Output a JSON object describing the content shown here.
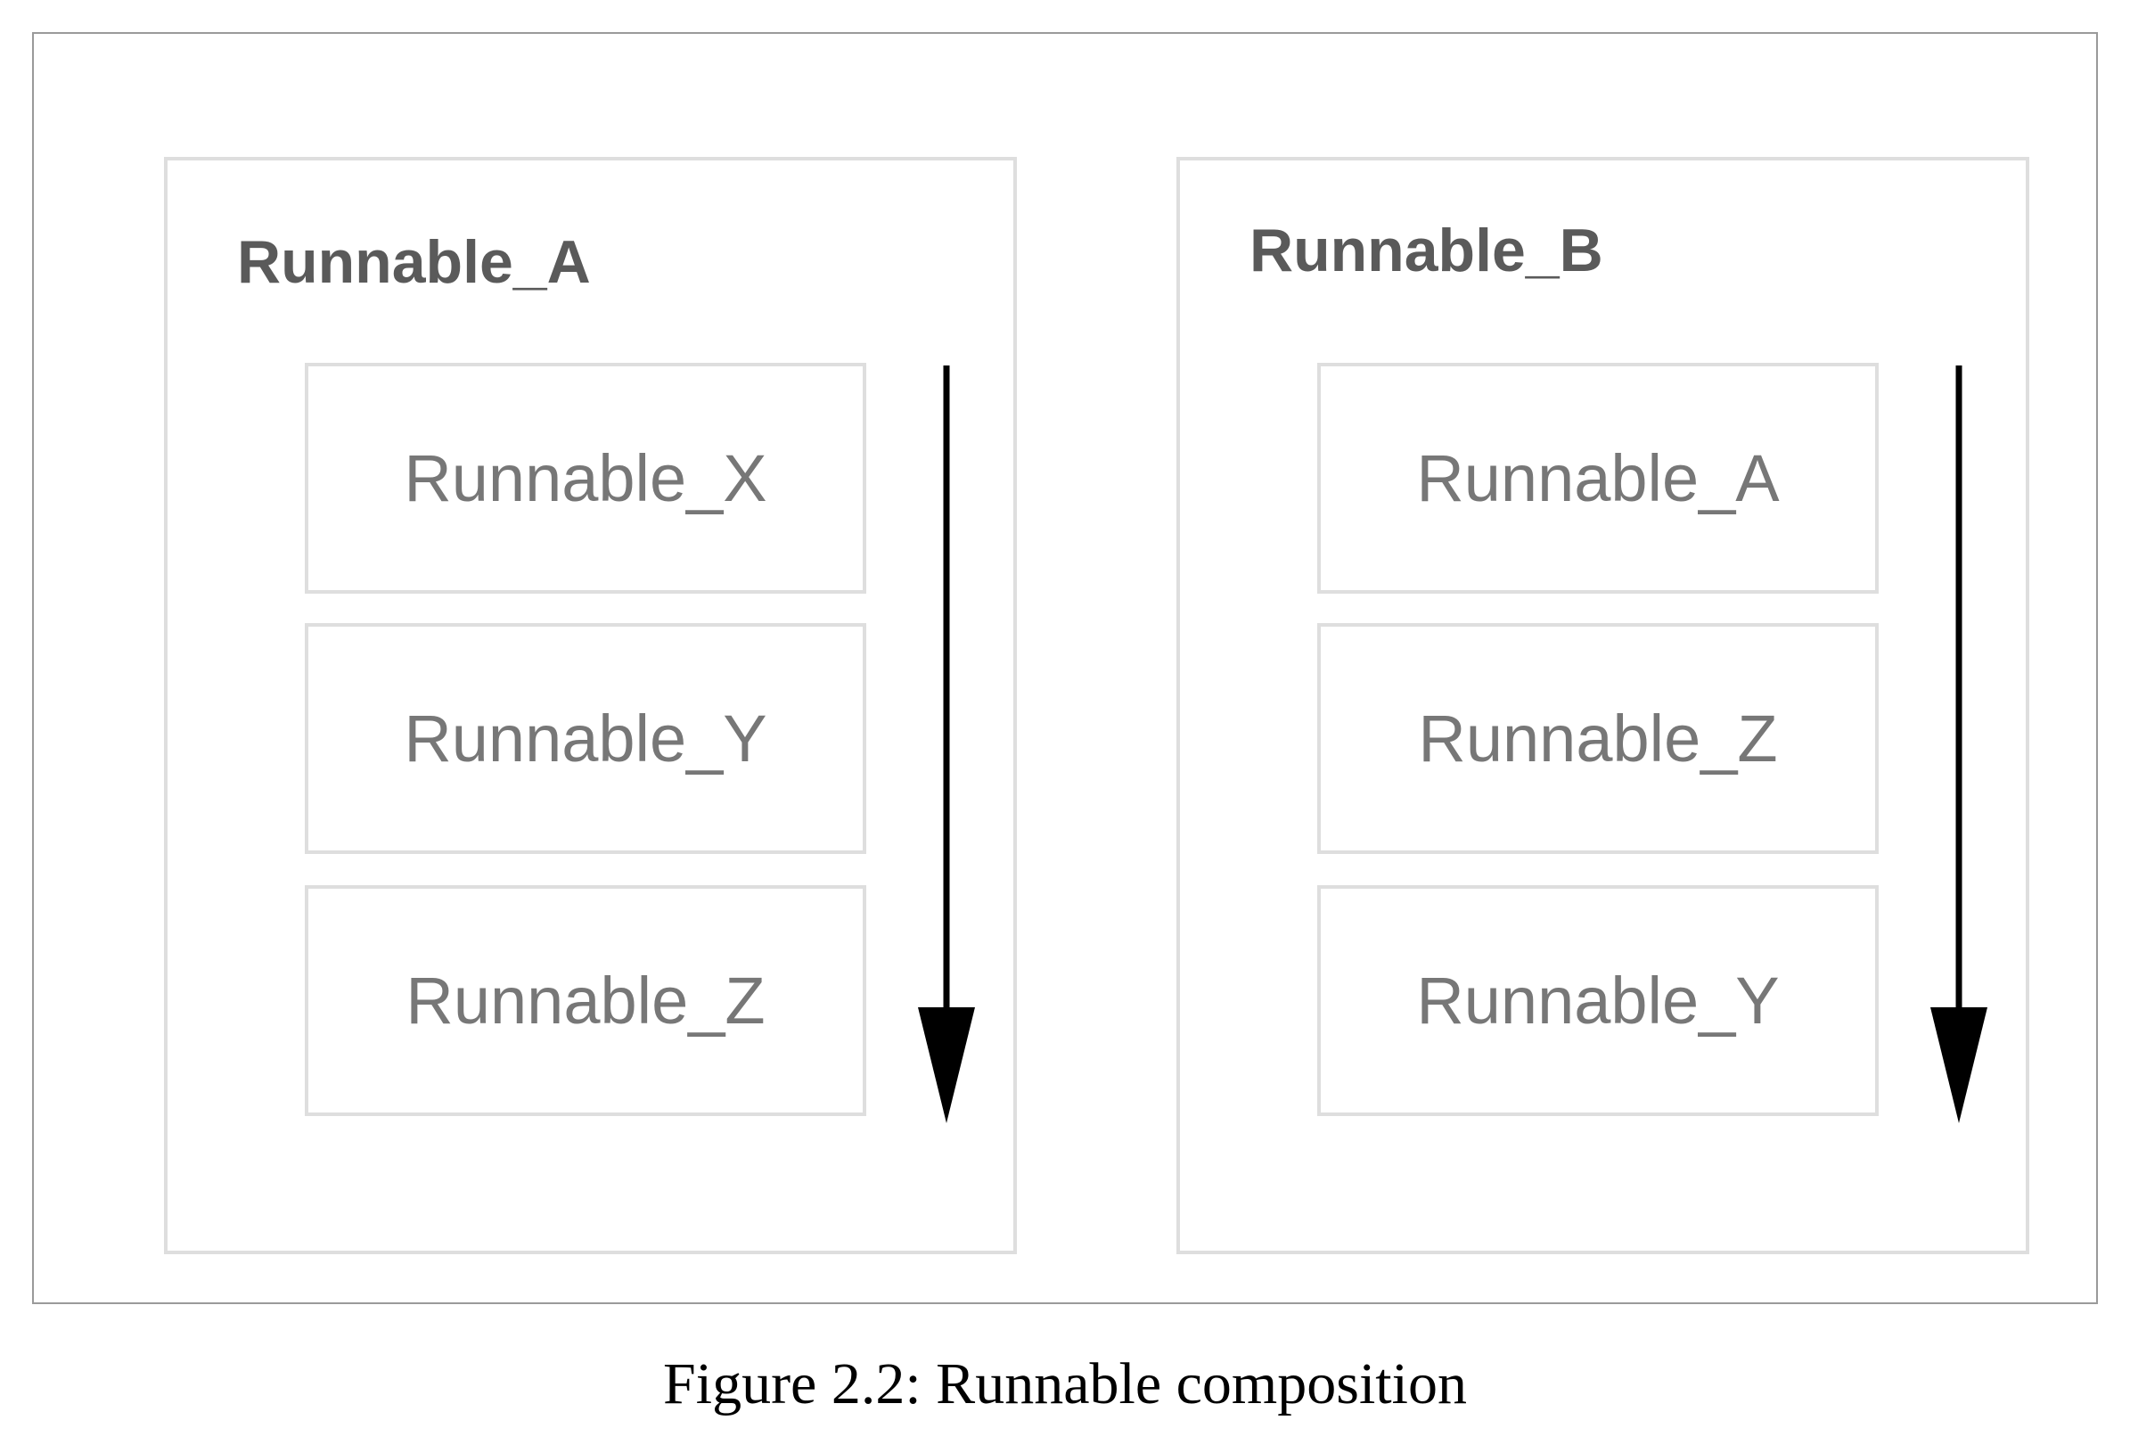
{
  "diagram": {
    "groups": [
      {
        "title": "Runnable_A",
        "items": [
          "Runnable_X",
          "Runnable_Y",
          "Runnable_Z"
        ]
      },
      {
        "title": "Runnable_B",
        "items": [
          "Runnable_A",
          "Runnable_Z",
          "Runnable_Y"
        ]
      }
    ],
    "colors": {
      "box_border": "#dedede",
      "title_text": "#5a5a5a",
      "item_text": "#777777",
      "arrow": "#000000"
    }
  },
  "caption": "Figure 2.2: Runnable composition"
}
